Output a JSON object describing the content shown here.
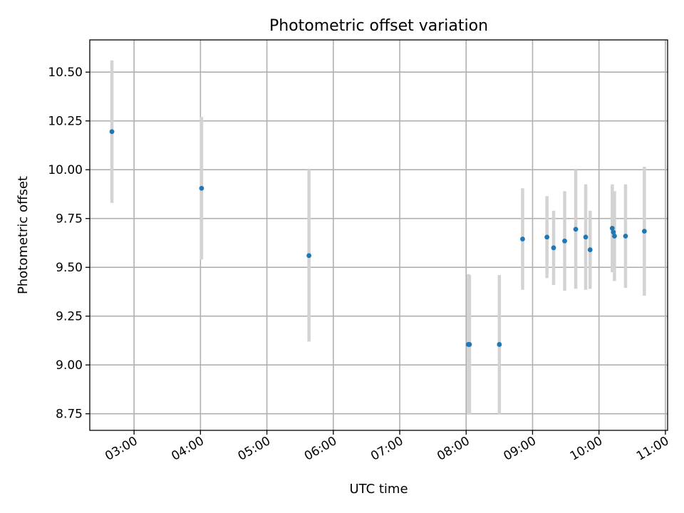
{
  "chart_data": {
    "type": "scatter",
    "title": "Photometric offset variation",
    "xlabel": "UTC time",
    "ylabel": "Photometric offset",
    "x_axis": "time",
    "xlim": [
      "02:20",
      "11:02"
    ],
    "ylim": [
      8.665,
      10.665
    ],
    "x_ticks": [
      "03:00",
      "04:00",
      "05:00",
      "06:00",
      "07:00",
      "08:00",
      "09:00",
      "10:00",
      "11:00"
    ],
    "y_ticks": [
      "8.75",
      "9.00",
      "9.25",
      "9.50",
      "9.75",
      "10.00",
      "10.25",
      "10.50"
    ],
    "grid": true,
    "colors": {
      "point": "#1f77b4",
      "errorbar": "#d3d3d3",
      "grid": "#b0b0b0"
    },
    "points": [
      {
        "x": "02:40",
        "y": 10.195,
        "yerr": 0.365
      },
      {
        "x": "04:01",
        "y": 9.905,
        "yerr": 0.365
      },
      {
        "x": "05:38",
        "y": 9.56,
        "yerr": 0.44
      },
      {
        "x": "08:02",
        "y": 9.105,
        "yerr": 0.36
      },
      {
        "x": "08:03",
        "y": 9.105,
        "yerr": 0.355
      },
      {
        "x": "08:30",
        "y": 9.105,
        "yerr": 0.355
      },
      {
        "x": "08:51",
        "y": 9.645,
        "yerr": 0.26
      },
      {
        "x": "09:13",
        "y": 9.655,
        "yerr": 0.21
      },
      {
        "x": "09:19",
        "y": 9.6,
        "yerr": 0.19
      },
      {
        "x": "09:29",
        "y": 9.635,
        "yerr": 0.255
      },
      {
        "x": "09:39",
        "y": 9.695,
        "yerr": 0.305
      },
      {
        "x": "09:48",
        "y": 9.655,
        "yerr": 0.27
      },
      {
        "x": "09:52",
        "y": 9.59,
        "yerr": 0.2
      },
      {
        "x": "10:12",
        "y": 9.7,
        "yerr": 0.225
      },
      {
        "x": "10:13",
        "y": 9.68,
        "yerr": 0.2
      },
      {
        "x": "10:14",
        "y": 9.66,
        "yerr": 0.23
      },
      {
        "x": "10:24",
        "y": 9.66,
        "yerr": 0.265
      },
      {
        "x": "10:41",
        "y": 9.685,
        "yerr": 0.33
      }
    ]
  }
}
